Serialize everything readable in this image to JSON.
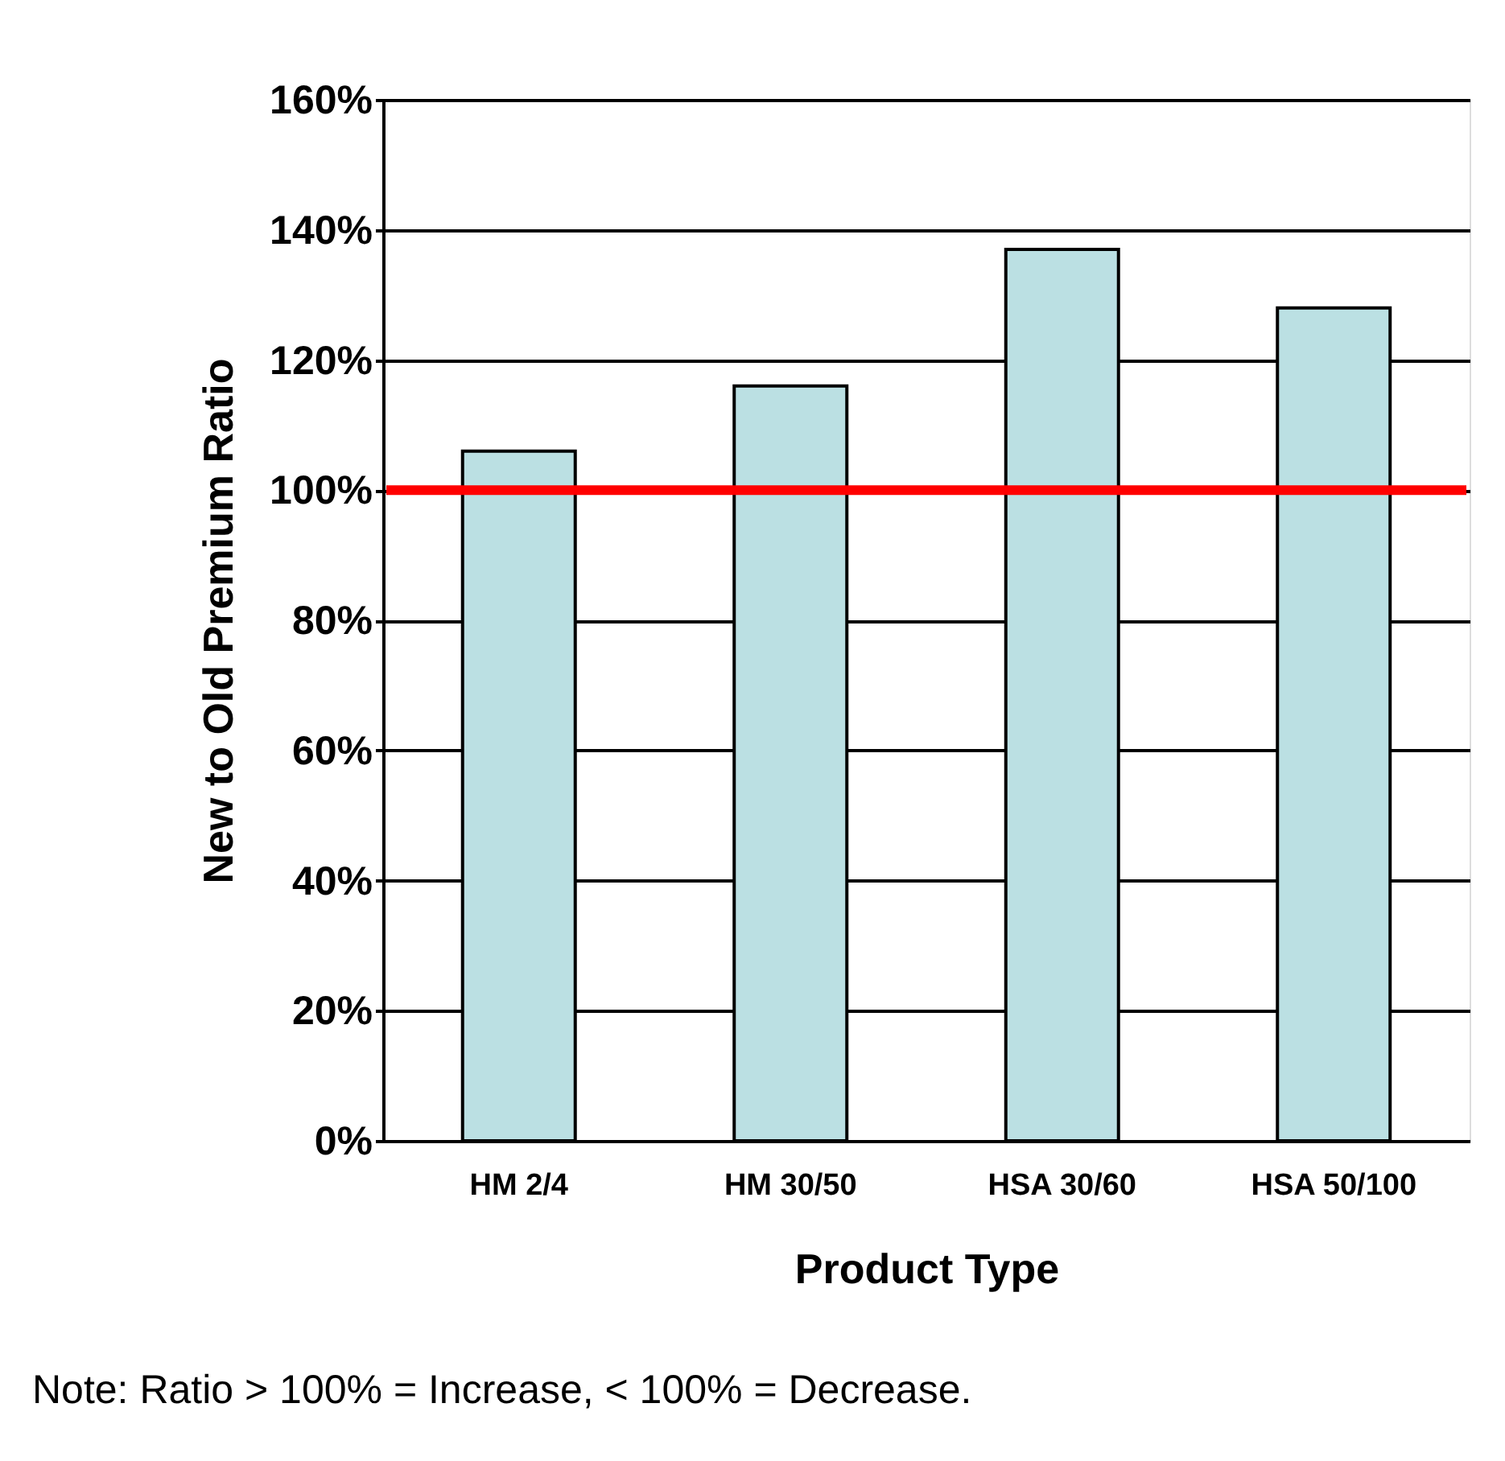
{
  "chart_data": {
    "type": "bar",
    "xlabel": "Product Type",
    "ylabel": "New to Old Premium Ratio",
    "categories": [
      "HM 2/4",
      "HM 30/50",
      "HSA 30/60",
      "HSA 50/100"
    ],
    "values": [
      106,
      116,
      137,
      128
    ],
    "color": "#bbe0e3",
    "ylim": [
      0,
      160
    ],
    "yticks": [
      {
        "value": 0,
        "label": "0%"
      },
      {
        "value": 20,
        "label": "20%"
      },
      {
        "value": 40,
        "label": "40%"
      },
      {
        "value": 60,
        "label": "60%"
      },
      {
        "value": 80,
        "label": "80%"
      },
      {
        "value": 100,
        "label": "100%"
      },
      {
        "value": 120,
        "label": "120%"
      },
      {
        "value": 140,
        "label": "140%"
      },
      {
        "value": 160,
        "label": "160%"
      }
    ],
    "grid": "y",
    "ref_lines": [
      {
        "axis": "y",
        "value": 100,
        "color": "#ff0000"
      }
    ],
    "annotations": [
      "Note: Ratio > 100% = Increase, < 100% = Decrease."
    ]
  }
}
